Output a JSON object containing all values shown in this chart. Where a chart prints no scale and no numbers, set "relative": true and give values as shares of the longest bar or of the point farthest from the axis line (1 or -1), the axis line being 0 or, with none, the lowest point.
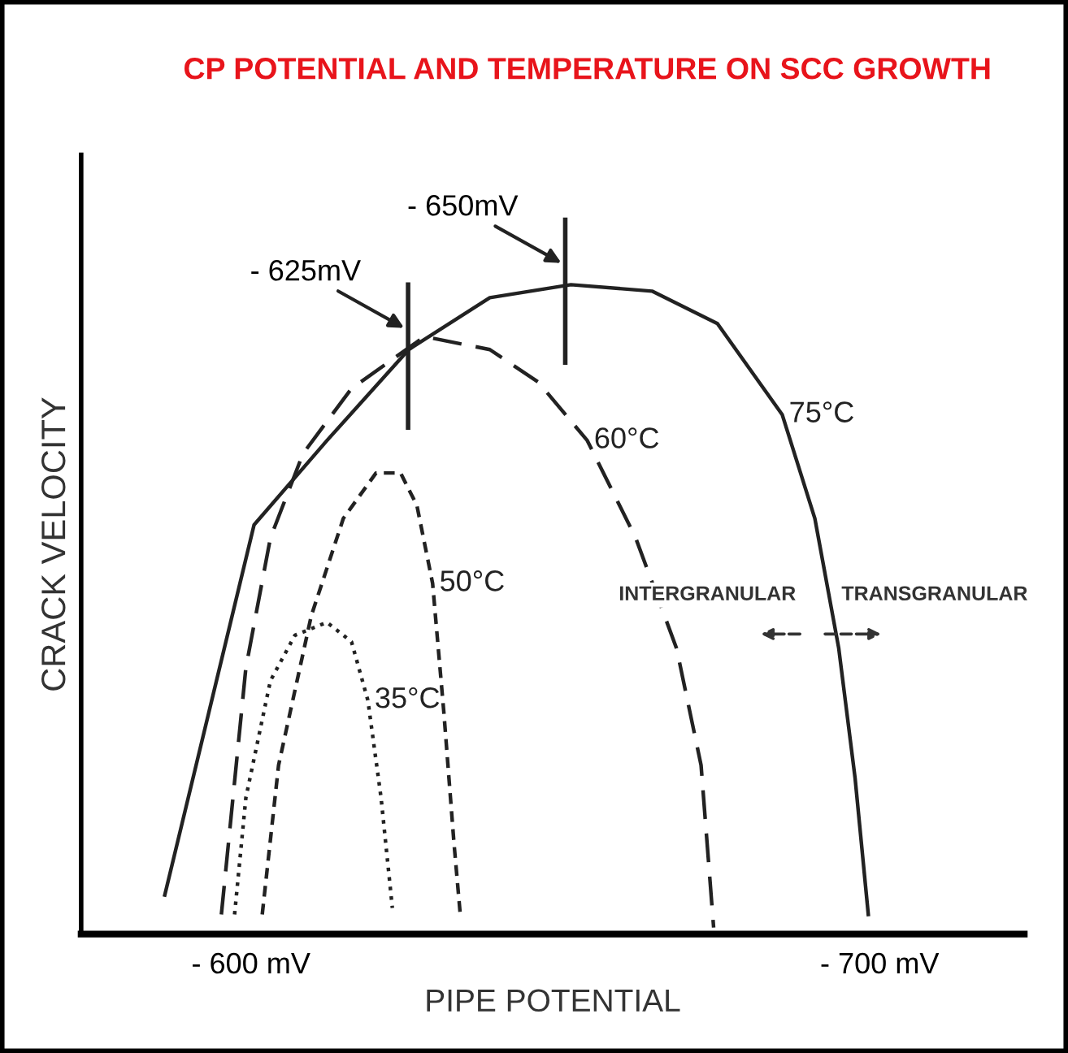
{
  "chart_data": {
    "type": "line",
    "title": "CP POTENTIAL AND TEMPERATURE ON SCC GROWTH",
    "xlabel": "PIPE POTENTIAL",
    "ylabel": "CRACK VELOCITY",
    "relative": true,
    "xlim": [
      -573,
      -723
    ],
    "xticks": [
      {
        "value": -600,
        "label": "- 600 mV"
      },
      {
        "value": -700,
        "label": "- 700 mV"
      }
    ],
    "series": [
      {
        "name": "75°C",
        "color": "#222222",
        "line_style": "solid",
        "x": [
          -586.3,
          -600.5,
          -612.1,
          -625.1,
          -638.0,
          -650.9,
          -663.8,
          -674.2,
          -684.5,
          -689.7,
          -693.5,
          -696.1,
          -698.2
        ],
        "values": [
          0.06,
          0.63,
          0.76,
          0.9,
          0.98,
          1.0,
          0.99,
          0.94,
          0.8,
          0.64,
          0.44,
          0.24,
          0.03
        ]
      },
      {
        "name": "60°C",
        "color": "#222222",
        "line_style": "dashed",
        "x": [
          -595.3,
          -599.2,
          -603.1,
          -608.3,
          -616.0,
          -627.6,
          -638.0,
          -645.7,
          -653.5,
          -661.2,
          -667.7,
          -671.6,
          -673.6
        ],
        "values": [
          0.03,
          0.41,
          0.61,
          0.74,
          0.84,
          0.92,
          0.9,
          0.85,
          0.76,
          0.61,
          0.44,
          0.26,
          0.01
        ]
      },
      {
        "name": "50°C",
        "color": "#222222",
        "line_style": "dashed",
        "x": [
          -601.8,
          -604.4,
          -609.6,
          -614.7,
          -619.9,
          -623.8,
          -626.4,
          -628.9,
          -630.7,
          -632.3,
          -633.3
        ],
        "values": [
          0.03,
          0.26,
          0.49,
          0.64,
          0.71,
          0.71,
          0.66,
          0.54,
          0.34,
          0.14,
          0.03
        ]
      },
      {
        "name": "35°C",
        "color": "#222222",
        "line_style": "dotted",
        "x": [
          -597.4,
          -599.2,
          -603.1,
          -607.0,
          -612.1,
          -616.0,
          -618.6,
          -620.7,
          -622.5
        ],
        "values": [
          0.03,
          0.21,
          0.39,
          0.46,
          0.48,
          0.45,
          0.36,
          0.21,
          0.04
        ]
      }
    ],
    "annotations": [
      {
        "text": "- 625mV",
        "x": -625,
        "y": 0.9
      },
      {
        "text": "- 650mV",
        "x": -650,
        "y": 1.0
      },
      "INTERGRANULAR",
      "TRANSGRANULAR"
    ],
    "grid": false,
    "legend": false
  }
}
